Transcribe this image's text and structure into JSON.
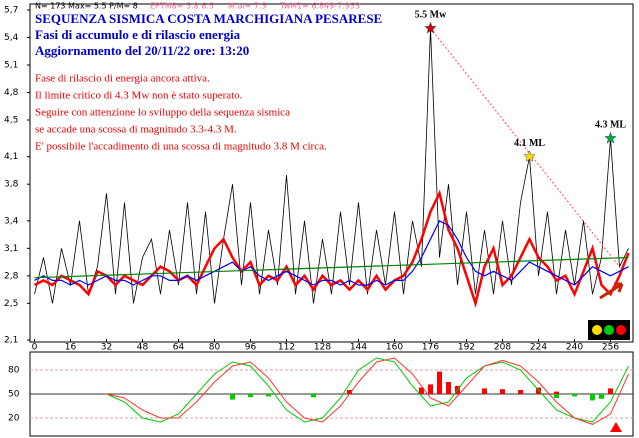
{
  "chart_data": [
    {
      "type": "line",
      "title": "SEQUENZA SISMICA COSTA MARCHIGIANA PESARESE",
      "subtitle": [
        "Fasi di accumulo e di rilascio energia",
        "Aggiornamento del 20/11/22 ore: 13:20"
      ],
      "stats": [
        "N= 173 Max= 5.5 P/M= 8",
        "EPTM8= 5.8 6.5",
        "M.al= 7.5",
        "TwM1= 6.849-7.953"
      ],
      "notes": [
        "Fase di rilascio di energia ancora attiva.",
        "Il limite critico di 4.3 Mw non è stato superato.",
        "Seguire con attenzione lo sviluppo della sequenza sismica",
        "se accade una scossa di magnitudo 3.3-4.3 M.",
        "E' possibile l'accadimento di una scossa di magnitudo 3.8 M circa."
      ],
      "x": [
        0,
        4,
        8,
        12,
        16,
        20,
        24,
        28,
        32,
        36,
        40,
        44,
        48,
        52,
        56,
        60,
        64,
        68,
        72,
        76,
        80,
        84,
        88,
        92,
        96,
        100,
        104,
        108,
        112,
        116,
        120,
        124,
        128,
        132,
        136,
        140,
        144,
        148,
        152,
        156,
        160,
        164,
        168,
        172,
        176,
        180,
        184,
        188,
        192,
        196,
        200,
        204,
        208,
        212,
        216,
        220,
        224,
        228,
        232,
        236,
        240,
        244,
        248,
        252,
        256,
        260,
        264
      ],
      "series": [
        {
          "color": "#000000",
          "values": [
            2.6,
            3.0,
            2.5,
            3.1,
            2.7,
            3.4,
            2.6,
            2.9,
            3.7,
            2.6,
            3.6,
            2.5,
            3.0,
            3.2,
            2.6,
            3.3,
            2.7,
            3.6,
            2.6,
            3.5,
            2.5,
            3.2,
            3.8,
            2.7,
            3.6,
            2.6,
            3.3,
            2.7,
            3.9,
            2.6,
            3.4,
            2.5,
            3.2,
            2.6,
            3.5,
            2.7,
            3.6,
            2.6,
            3.3,
            2.7,
            3.5,
            2.6,
            3.4,
            2.9,
            5.5,
            3.0,
            3.8,
            2.7,
            3.5,
            2.6,
            3.3,
            2.6,
            3.4,
            2.7,
            3.6,
            4.1,
            2.8,
            3.5,
            2.6,
            3.3,
            2.7,
            3.4,
            2.6,
            3.0,
            4.3,
            2.9,
            3.1
          ]
        },
        {
          "color": "#ff0000",
          "values": [
            2.7,
            2.75,
            2.7,
            2.8,
            2.75,
            2.7,
            2.6,
            2.85,
            2.8,
            2.7,
            2.8,
            2.75,
            2.7,
            2.8,
            2.9,
            2.85,
            2.75,
            2.8,
            2.7,
            2.9,
            3.1,
            3.2,
            3.0,
            2.85,
            2.95,
            2.7,
            2.8,
            2.75,
            2.9,
            2.7,
            2.8,
            2.65,
            2.8,
            2.7,
            2.75,
            2.65,
            2.75,
            2.65,
            2.8,
            2.65,
            2.75,
            2.8,
            2.95,
            3.2,
            3.5,
            3.7,
            3.3,
            3.1,
            2.8,
            2.5,
            2.9,
            3.1,
            2.7,
            2.8,
            3.0,
            3.2,
            3.0,
            2.9,
            2.75,
            2.8,
            2.6,
            2.85,
            3.1,
            2.7,
            2.6,
            2.8,
            3.05
          ]
        },
        {
          "color": "#0000ff",
          "values": [
            2.75,
            2.8,
            2.75,
            2.75,
            2.7,
            2.75,
            2.7,
            2.75,
            2.8,
            2.75,
            2.75,
            2.7,
            2.75,
            2.8,
            2.8,
            2.75,
            2.75,
            2.8,
            2.75,
            2.8,
            2.85,
            2.9,
            2.95,
            2.85,
            2.9,
            2.8,
            2.75,
            2.8,
            2.85,
            2.8,
            2.75,
            2.7,
            2.75,
            2.75,
            2.7,
            2.75,
            2.7,
            2.7,
            2.75,
            2.7,
            2.75,
            2.75,
            2.85,
            3.0,
            3.2,
            3.4,
            3.35,
            3.2,
            3.0,
            2.85,
            2.8,
            2.85,
            2.8,
            2.75,
            2.85,
            2.95,
            2.9,
            2.85,
            2.8,
            2.75,
            2.7,
            2.8,
            2.9,
            2.85,
            2.8,
            2.85,
            2.9
          ]
        },
        {
          "color": "#008000",
          "x": [
            0,
            264
          ],
          "values": [
            2.78,
            3.0
          ]
        },
        {
          "color": "#ff6666",
          "x": [
            176,
            260
          ],
          "values": [
            5.5,
            2.9
          ],
          "dashed": true
        }
      ],
      "annotations": [
        {
          "text": "5.5 Mw",
          "x": 176,
          "y": 5.5,
          "color": "#cc0000"
        },
        {
          "text": "4.1 ML",
          "x": 220,
          "y": 4.1,
          "color": "#ffdd00"
        },
        {
          "text": "4.3 ML",
          "x": 256,
          "y": 4.3,
          "color": "#00aa44"
        }
      ],
      "xlim": [
        -2,
        266
      ],
      "ylim": [
        2.1,
        5.7
      ],
      "xticks": [
        0,
        16,
        32,
        48,
        64,
        80,
        96,
        112,
        128,
        144,
        160,
        176,
        192,
        208,
        224,
        240,
        256
      ],
      "yticks": [
        {
          "value": 2.1,
          "label": "2,1"
        },
        {
          "value": 2.5,
          "label": "2,5"
        },
        {
          "value": 2.8,
          "label": "2,8"
        },
        {
          "value": 3.1,
          "label": "3,1"
        },
        {
          "value": 3.4,
          "label": "3,4"
        },
        {
          "value": 3.8,
          "label": "3,8"
        },
        {
          "value": 4.1,
          "label": "4,1"
        },
        {
          "value": 4.5,
          "label": "4,5"
        },
        {
          "value": 4.8,
          "label": "4,8"
        },
        {
          "value": 5.1,
          "label": "5,1"
        },
        {
          "value": 5.4,
          "label": "5,4"
        },
        {
          "value": 5.7,
          "label": "5,7"
        }
      ]
    },
    {
      "type": "oscillator",
      "x": [
        32,
        40,
        48,
        56,
        64,
        72,
        80,
        88,
        96,
        104,
        112,
        120,
        128,
        136,
        144,
        152,
        160,
        168,
        176,
        184,
        192,
        200,
        208,
        216,
        224,
        232,
        240,
        248,
        256,
        264
      ],
      "series": [
        {
          "color": "#00cc00",
          "values": [
            50,
            40,
            20,
            15,
            25,
            50,
            75,
            90,
            85,
            60,
            30,
            15,
            20,
            45,
            80,
            95,
            90,
            60,
            35,
            40,
            70,
            85,
            90,
            80,
            55,
            30,
            20,
            15,
            40,
            85
          ]
        },
        {
          "color": "#ff3333",
          "values": [
            50,
            45,
            30,
            20,
            20,
            40,
            65,
            85,
            90,
            70,
            40,
            20,
            15,
            35,
            65,
            90,
            95,
            75,
            45,
            35,
            60,
            85,
            92,
            85,
            65,
            40,
            20,
            12,
            25,
            75
          ]
        }
      ],
      "bars": [
        {
          "color": "#00cc00",
          "x": [
            88,
            96,
            104,
            124,
            232,
            240,
            248,
            252
          ],
          "values": [
            43,
            46,
            47,
            46,
            45,
            47,
            42,
            44
          ]
        },
        {
          "color": "#ff0000",
          "x": [
            140,
            172,
            176,
            180,
            184,
            188,
            200,
            208,
            216,
            224,
            232,
            256
          ],
          "values": [
            55,
            58,
            62,
            78,
            65,
            60,
            57,
            56,
            55,
            58,
            53,
            57
          ]
        }
      ],
      "xlim": [
        -2,
        266
      ],
      "ylim": [
        0,
        100
      ],
      "yticks": [
        20,
        50,
        80
      ]
    }
  ]
}
